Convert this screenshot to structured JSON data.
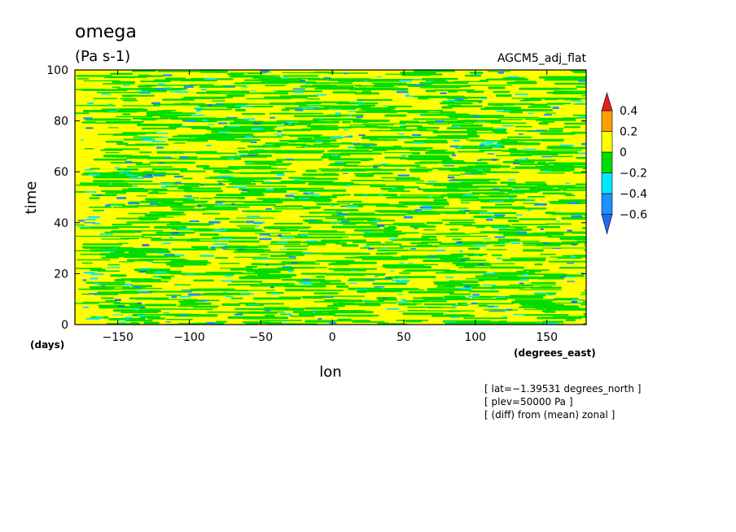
{
  "chart_data": {
    "type": "heatmap",
    "title": "omega",
    "units": "(Pa s-1)",
    "model": "AGCM5_adj_flat",
    "xlabel": "lon",
    "ylabel": "time",
    "x_unit": "(degrees_east)",
    "y_unit": "(days)",
    "xlim": [
      -180,
      177.5
    ],
    "ylim": [
      0,
      100
    ],
    "x_ticks": [
      -150,
      -100,
      -50,
      0,
      50,
      100,
      150
    ],
    "x_tick_labels": [
      "−150",
      "−100",
      "−50",
      "0",
      "50",
      "100",
      "150"
    ],
    "y_ticks": [
      0,
      20,
      40,
      60,
      80,
      100
    ],
    "y_tick_labels": [
      "0",
      "20",
      "40",
      "60",
      "80",
      "100"
    ],
    "colorbar": {
      "levels": [
        -0.6,
        -0.4,
        -0.2,
        0,
        0.2,
        0.4
      ],
      "level_labels": [
        "−0.6",
        "−0.4",
        "−0.2",
        "0",
        "0.2",
        "0.4"
      ],
      "colors": [
        "#1e6eeb",
        "#1e90ff",
        "#00e8ff",
        "#00dc00",
        "#ffff00",
        "#ffa000",
        "#e61e1e"
      ]
    },
    "annotations": [
      "[ lat=−1.39531 degrees_north ]",
      "[ plev=50000 Pa ]",
      "[ (diff) from (mean) zonal ]"
    ]
  }
}
